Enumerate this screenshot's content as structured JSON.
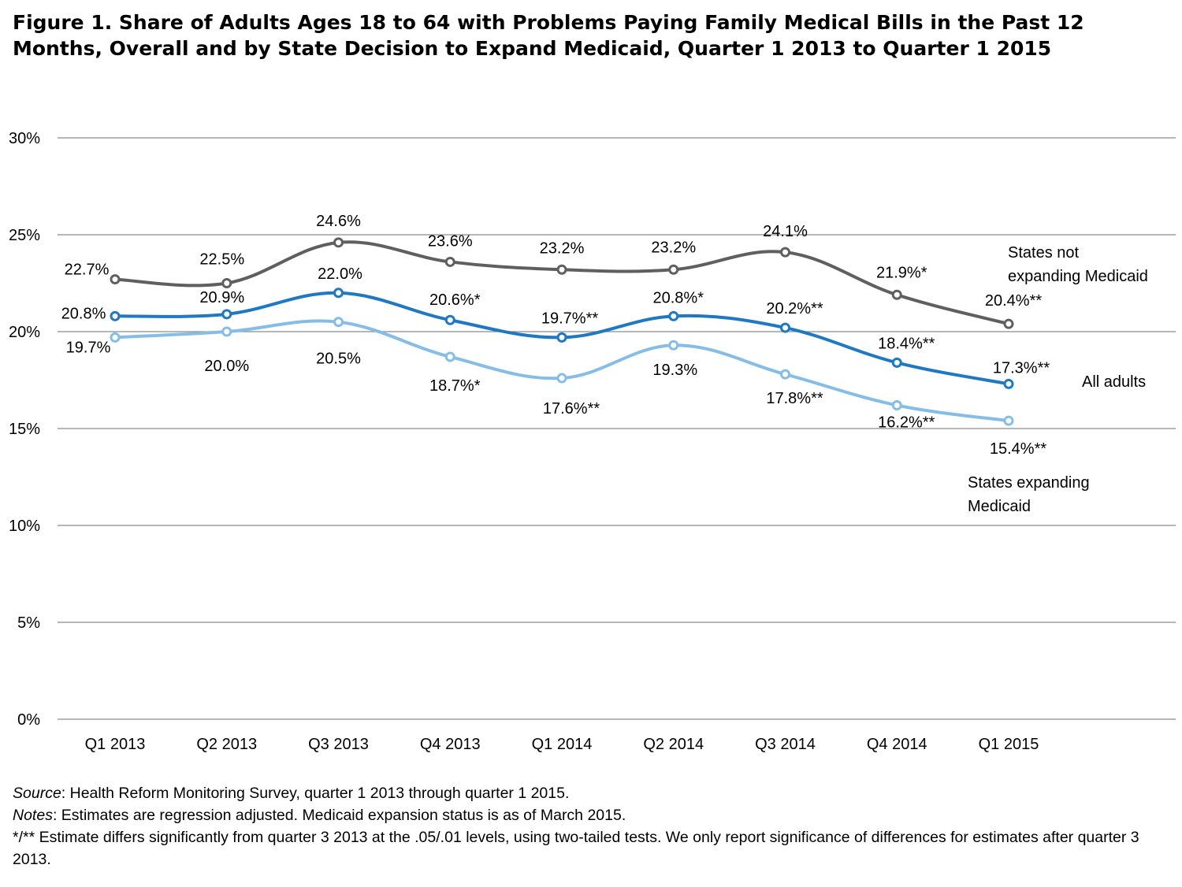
{
  "title": "Figure 1. Share of Adults Ages 18 to 64 with Problems Paying Family Medical Bills in the Past 12 Months, Overall and by State Decision to Expand Medicaid, Quarter 1 2013 to Quarter 1 2015",
  "colors": {
    "not_expanding": "#5f5f5f",
    "all_adults": "#1f78c1",
    "expanding": "#85bde6",
    "grid": "#8c8c8c"
  },
  "chart_data": {
    "type": "line",
    "title": "Figure 1. Share of Adults Ages 18 to 64 with Problems Paying Family Medical Bills in the Past 12 Months, Overall and by State Decision to Expand Medicaid, Quarter 1 2013 to Quarter 1 2015",
    "xlabel": "",
    "ylabel": "",
    "ylim": [
      0,
      30
    ],
    "yticks": [
      "0%",
      "5%",
      "10%",
      "15%",
      "20%",
      "25%",
      "30%"
    ],
    "grid": true,
    "smooth": true,
    "categories": [
      "Q1 2013",
      "Q2 2013",
      "Q3 2013",
      "Q4 2013",
      "Q1 2014",
      "Q2 2014",
      "Q3 2014",
      "Q4 2014",
      "Q1 2015"
    ],
    "series": [
      {
        "key": "not_expanding",
        "name": "States not expanding Medicaid",
        "name_lines": [
          "States not",
          "expanding Medicaid"
        ],
        "values": [
          22.7,
          22.5,
          24.6,
          23.6,
          23.2,
          23.2,
          24.1,
          21.9,
          20.4
        ],
        "labels": [
          "22.7%",
          "22.5%",
          "24.6%",
          "23.6%",
          "23.2%",
          "23.2%",
          "24.1%",
          "21.9%*",
          "20.4%**"
        ]
      },
      {
        "key": "all_adults",
        "name": "All adults",
        "name_lines": [
          "All adults"
        ],
        "values": [
          20.8,
          20.9,
          22.0,
          20.6,
          19.7,
          20.8,
          20.2,
          18.4,
          17.3
        ],
        "labels": [
          "20.8%",
          "20.9%",
          "22.0%",
          "20.6%*",
          "19.7%**",
          "20.8%*",
          "20.2%**",
          "18.4%**",
          "17.3%**"
        ]
      },
      {
        "key": "expanding",
        "name": "States expanding Medicaid",
        "name_lines": [
          "States expanding",
          "Medicaid"
        ],
        "values": [
          19.7,
          20.0,
          20.5,
          18.7,
          17.6,
          19.3,
          17.8,
          16.2,
          15.4
        ],
        "labels": [
          "19.7%",
          "20.0%",
          "20.5%",
          "18.7%*",
          "17.6%**",
          "19.3%",
          "17.8%**",
          "16.2%**",
          "15.4%**"
        ]
      }
    ]
  },
  "notes": {
    "source_label": "Source",
    "source_text": ": Health Reform Monitoring Survey, quarter 1 2013 through quarter 1 2015.",
    "notes_label": "Notes",
    "notes_text": ":  Estimates are regression adjusted.  Medicaid expansion status is as of March 2015.",
    "significance_text": "*/** Estimate differs significantly from quarter 3 2013 at the .05/.01 levels, using two-tailed tests.  We only report significance of differences for estimates after quarter 3 2013."
  }
}
